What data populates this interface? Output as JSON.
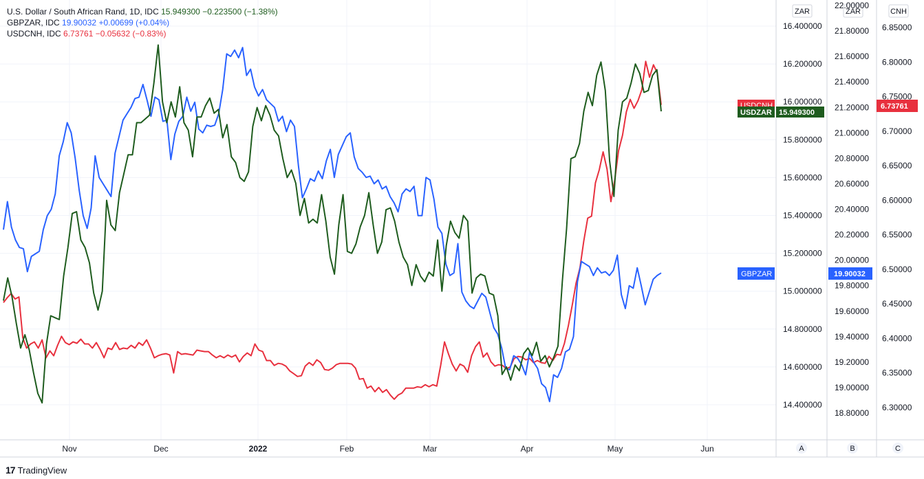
{
  "legend": {
    "row1_symbol": "U.S. Dollar / South African Rand, 1D, IDC",
    "row1_value": "15.949300",
    "row1_change": "−0.223500 (−1.38%)",
    "row2_symbol": "GBPZAR, IDC",
    "row2_value": "19.90032",
    "row2_change": "+0.00699 (+0.04%)",
    "row3_symbol": "USDCNH, IDC",
    "row3_value": "6.73761",
    "row3_change": "−0.05632 (−0.83%)"
  },
  "footer": {
    "brand": "TradingView",
    "logo": "17"
  },
  "axis_headers": {
    "a": "ZAR",
    "b": "ZAR",
    "c": "CNH"
  },
  "axis_letters": {
    "a": "A",
    "b": "B",
    "c": "C"
  },
  "labels": {
    "usdcnh_tag": "USDCNH",
    "usdzar_tag": "USDZAR",
    "usdzar_value": "15.949300",
    "gbpzar_tag": "GBPZAR",
    "gbpzar_value": "19.90032",
    "usdcnh_value": "6.73761"
  },
  "colors": {
    "usdzar": "#1e5c1e",
    "gbpzar": "#2962ff",
    "usdcnh": "#e8303e",
    "grid": "#f0f3fa",
    "axis_line": "#d1d4dc"
  },
  "chart_data": {
    "type": "line",
    "x_labels": [
      "Nov",
      "Dec",
      "2022",
      "Feb",
      "Mar",
      "Apr",
      "May",
      "Jun"
    ],
    "axes": {
      "A": {
        "currency": "ZAR",
        "ticks": [
          "16.400000",
          "16.200000",
          "16.000000",
          "15.800000",
          "15.600000",
          "15.400000",
          "15.200000",
          "15.000000",
          "14.800000",
          "14.600000",
          "14.400000"
        ]
      },
      "B": {
        "currency": "ZAR",
        "ticks": [
          "22.00000",
          "21.80000",
          "21.60000",
          "21.40000",
          "21.20000",
          "21.00000",
          "20.80000",
          "20.60000",
          "20.40000",
          "20.20000",
          "20.00000",
          "19.80000",
          "19.60000",
          "19.40000",
          "19.20000",
          "19.00000",
          "18.80000"
        ]
      },
      "C": {
        "currency": "CNH",
        "ticks": [
          "6.85000",
          "6.80000",
          "6.75000",
          "6.70000",
          "6.65000",
          "6.60000",
          "6.55000",
          "6.50000",
          "6.45000",
          "6.40000",
          "6.35000",
          "6.30000"
        ]
      }
    },
    "series": [
      {
        "name": "USDZAR",
        "axis": "A",
        "values": [
          14.95,
          15.07,
          14.97,
          14.83,
          14.7,
          14.77,
          14.69,
          14.57,
          14.46,
          14.41,
          14.72,
          14.87,
          14.86,
          14.85,
          15.08,
          15.23,
          15.41,
          15.42,
          15.27,
          15.23,
          15.15,
          14.99,
          14.9,
          15.0,
          15.48,
          15.35,
          15.32,
          15.52,
          15.62,
          15.72,
          15.72,
          15.89,
          15.89,
          15.91,
          15.93,
          16.1,
          16.3,
          16.0,
          15.89,
          16.0,
          15.92,
          16.08,
          15.89,
          15.85,
          15.71,
          15.92,
          15.92,
          15.98,
          16.02,
          15.94,
          15.96,
          15.81,
          15.88,
          15.71,
          15.68,
          15.6,
          15.58,
          15.63,
          15.87,
          15.97,
          15.9,
          15.98,
          15.93,
          15.85,
          15.82,
          15.7,
          15.6,
          15.64,
          15.57,
          15.4,
          15.49,
          15.36,
          15.38,
          15.36,
          15.51,
          15.37,
          15.18,
          15.09,
          15.35,
          15.51,
          15.21,
          15.2,
          15.25,
          15.34,
          15.4,
          15.52,
          15.35,
          15.2,
          15.26,
          15.43,
          15.44,
          15.37,
          15.26,
          15.18,
          15.14,
          15.03,
          15.14,
          15.08,
          15.05,
          15.1,
          15.08,
          15.27,
          15.0,
          15.24,
          15.37,
          15.31,
          15.28,
          15.4,
          15.37,
          14.99,
          15.07,
          15.09,
          15.08,
          14.99,
          14.98,
          14.87,
          14.56,
          14.6,
          14.53,
          14.61,
          14.58,
          14.67,
          14.7,
          14.66,
          14.73,
          14.63,
          14.66,
          14.6,
          14.65,
          14.71,
          15.05,
          15.33,
          15.7,
          15.71,
          15.78,
          15.95,
          16.05,
          15.98,
          16.14,
          16.21,
          16.06,
          15.69,
          15.5,
          15.85,
          16.0,
          16.02,
          16.1,
          16.2,
          16.15,
          16.05,
          16.06,
          16.14,
          16.17,
          15.95
        ]
      },
      {
        "name": "GBPZAR",
        "axis": "B",
        "values": [
          20.24,
          20.46,
          20.26,
          20.16,
          20.1,
          20.09,
          19.91,
          20.03,
          20.05,
          20.07,
          20.24,
          20.35,
          20.4,
          20.52,
          20.82,
          20.93,
          21.08,
          21.0,
          20.8,
          20.55,
          20.35,
          20.25,
          20.41,
          20.82,
          20.65,
          20.6,
          20.55,
          20.5,
          20.84,
          20.97,
          21.1,
          21.15,
          21.2,
          21.27,
          21.28,
          21.38,
          21.26,
          21.13,
          21.28,
          21.26,
          21.09,
          21.1,
          20.79,
          20.99,
          21.09,
          21.13,
          21.28,
          21.17,
          21.24,
          21.03,
          21.0,
          21.06,
          21.05,
          21.06,
          21.15,
          21.34,
          21.62,
          21.6,
          21.65,
          21.59,
          21.67,
          21.45,
          21.5,
          21.36,
          21.29,
          21.34,
          21.26,
          21.23,
          21.2,
          21.09,
          21.13,
          21.01,
          21.1,
          21.05,
          20.74,
          20.49,
          20.56,
          20.64,
          20.62,
          20.7,
          20.64,
          20.78,
          20.87,
          20.65,
          20.83,
          20.9,
          20.97,
          21.0,
          20.81,
          20.72,
          20.69,
          20.65,
          20.66,
          20.6,
          20.63,
          20.56,
          20.58,
          20.5,
          20.45,
          20.38,
          20.52,
          20.56,
          20.54,
          20.58,
          20.35,
          20.35,
          20.65,
          20.63,
          20.48,
          20.26,
          20.21,
          19.97,
          19.88,
          19.9,
          20.13,
          19.75,
          19.68,
          19.64,
          19.62,
          19.68,
          19.74,
          19.71,
          19.59,
          19.47,
          19.42,
          19.31,
          19.15,
          19.14,
          19.25,
          19.23,
          19.18,
          19.1,
          19.28,
          19.2,
          19.15,
          19.03,
          19.0,
          18.89,
          19.1,
          19.08,
          19.15,
          19.28,
          19.3,
          19.4,
          19.83,
          19.99,
          19.97,
          19.95,
          19.88,
          19.94,
          19.9,
          19.91,
          19.88,
          19.92,
          20.04,
          19.73,
          19.62,
          19.8,
          19.78,
          19.94,
          19.8,
          19.65,
          19.75,
          19.85,
          19.88,
          19.9
        ]
      },
      {
        "name": "USDCNH",
        "axis": "C",
        "values": [
          6.452,
          6.459,
          6.465,
          6.457,
          6.46,
          6.401,
          6.386,
          6.392,
          6.395,
          6.386,
          6.398,
          6.372,
          6.382,
          6.375,
          6.39,
          6.403,
          6.394,
          6.391,
          6.395,
          6.393,
          6.399,
          6.392,
          6.392,
          6.386,
          6.394,
          6.384,
          6.372,
          6.386,
          6.384,
          6.394,
          6.384,
          6.386,
          6.385,
          6.39,
          6.386,
          6.394,
          6.39,
          6.398,
          6.386,
          6.372,
          6.375,
          6.377,
          6.378,
          6.376,
          6.35,
          6.381,
          6.377,
          6.378,
          6.377,
          6.376,
          6.383,
          6.382,
          6.381,
          6.381,
          6.376,
          6.372,
          6.375,
          6.372,
          6.376,
          6.373,
          6.376,
          6.366,
          6.374,
          6.379,
          6.375,
          6.392,
          6.383,
          6.381,
          6.368,
          6.368,
          6.361,
          6.364,
          6.363,
          6.36,
          6.353,
          6.349,
          6.345,
          6.346,
          6.36,
          6.365,
          6.361,
          6.369,
          6.365,
          6.355,
          6.354,
          6.357,
          6.362,
          6.364,
          6.364,
          6.364,
          6.363,
          6.357,
          6.341,
          6.342,
          6.328,
          6.331,
          6.323,
          6.329,
          6.322,
          6.326,
          6.318,
          6.312,
          6.318,
          6.321,
          6.328,
          6.328,
          6.328,
          6.33,
          6.329,
          6.333,
          6.33,
          6.333,
          6.331,
          6.361,
          6.395,
          6.378,
          6.363,
          6.353,
          6.363,
          6.36,
          6.351,
          6.375,
          6.388,
          6.395,
          6.373,
          6.379,
          6.366,
          6.36,
          6.362,
          6.361,
          6.356,
          6.359,
          6.371,
          6.374,
          6.373,
          6.369,
          6.371,
          6.365,
          6.368,
          6.365,
          6.364,
          6.374,
          6.368,
          6.377,
          6.376,
          6.393,
          6.418,
          6.448,
          6.48,
          6.502,
          6.541,
          6.574,
          6.577,
          6.625,
          6.644,
          6.67,
          6.645,
          6.598,
          6.629,
          6.672,
          6.694,
          6.728,
          6.746,
          6.733,
          6.744,
          6.76,
          6.801,
          6.778,
          6.796,
          6.784,
          6.738
        ]
      }
    ],
    "ylim_A": [
      14.2,
      16.6
    ],
    "ylim_B": [
      18.65,
      22.0
    ],
    "ylim_C": [
      6.27,
      6.86
    ],
    "grid": true,
    "legend_position": "top-left"
  }
}
